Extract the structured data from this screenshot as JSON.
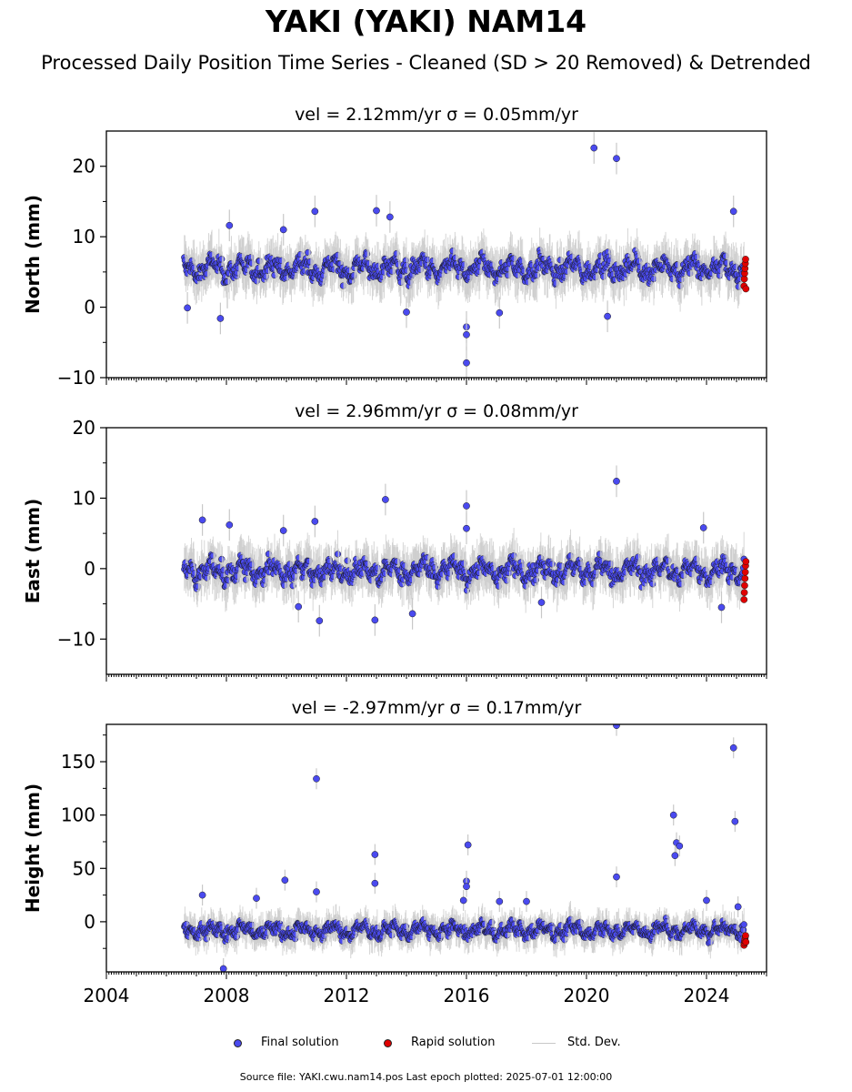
{
  "title": "YAKI (YAKI) NAM14",
  "subtitle": "Processed Daily Position Time Series - Cleaned (SD > 20 Removed) & Detrended",
  "colors": {
    "final": "#4a4aef",
    "rapid": "#e00000",
    "stddev": "#c8c8c8",
    "edge": "#1a1a1a"
  },
  "legend": {
    "final": "Final solution",
    "rapid": "Rapid solution",
    "stddev": "Std. Dev."
  },
  "footer": "Source file: YAKI.cwu.nam14.pos  Last epoch plotted: 2025-07-01 12:00:00",
  "chart_data": [
    {
      "type": "scatter",
      "title": "vel = 2.12mm/yr   σ = 0.05mm/yr",
      "ylabel": "North (mm)",
      "xlim": [
        2004.0,
        2026.0
      ],
      "ylim": [
        -10,
        25
      ],
      "yticks": [
        -10,
        0,
        10,
        20
      ],
      "ytick_labels": [
        "−10",
        "0",
        "10",
        "20"
      ],
      "series_start": 2006.6,
      "rapid_start": 2025.25,
      "rapid_end": 2025.5,
      "baseline": 5.5,
      "noise": 1.6,
      "rapid_values": [
        3.0,
        4.0,
        4.8,
        5.5,
        6.2,
        6.8,
        2.6
      ],
      "outliers": [
        {
          "x": 2020.25,
          "y": 22.6
        },
        {
          "x": 2021.0,
          "y": 21.1
        },
        {
          "x": 2013.0,
          "y": 13.7
        },
        {
          "x": 2010.95,
          "y": 13.6
        },
        {
          "x": 2024.9,
          "y": 13.6
        },
        {
          "x": 2013.45,
          "y": 12.8
        },
        {
          "x": 2016.0,
          "y": -2.8
        },
        {
          "x": 2016.0,
          "y": -3.9
        },
        {
          "x": 2016.0,
          "y": -7.9
        },
        {
          "x": 2007.8,
          "y": -1.6
        },
        {
          "x": 2014.0,
          "y": -0.7
        },
        {
          "x": 2020.7,
          "y": -1.3
        },
        {
          "x": 2017.1,
          "y": -0.8
        },
        {
          "x": 2006.7,
          "y": -0.1
        },
        {
          "x": 2009.9,
          "y": 11.0
        },
        {
          "x": 2008.1,
          "y": 11.6
        }
      ]
    },
    {
      "type": "scatter",
      "title": "vel = 2.96mm/yr   σ = 0.08mm/yr",
      "ylabel": "East (mm)",
      "xlim": [
        2004.0,
        2026.0
      ],
      "ylim": [
        -15,
        20
      ],
      "yticks": [
        -10,
        0,
        10,
        20
      ],
      "ytick_labels": [
        "−10",
        "0",
        "10",
        "20"
      ],
      "series_start": 2006.6,
      "rapid_start": 2025.25,
      "rapid_end": 2025.5,
      "baseline": -0.3,
      "noise": 1.6,
      "rapid_values": [
        -4.4,
        -3.4,
        -2.4,
        -1.4,
        -0.5,
        0.4,
        1.0
      ],
      "outliers": [
        {
          "x": 2021.0,
          "y": 12.4
        },
        {
          "x": 2013.3,
          "y": 9.8
        },
        {
          "x": 2016.0,
          "y": 8.9
        },
        {
          "x": 2007.2,
          "y": 6.9
        },
        {
          "x": 2010.95,
          "y": 6.7
        },
        {
          "x": 2008.1,
          "y": 6.2
        },
        {
          "x": 2023.9,
          "y": 5.8
        },
        {
          "x": 2016.0,
          "y": 5.7
        },
        {
          "x": 2009.9,
          "y": 5.4
        },
        {
          "x": 2011.1,
          "y": -7.4
        },
        {
          "x": 2012.95,
          "y": -7.3
        },
        {
          "x": 2014.2,
          "y": -6.4
        },
        {
          "x": 2010.4,
          "y": -5.4
        },
        {
          "x": 2024.5,
          "y": -5.5
        },
        {
          "x": 2018.5,
          "y": -4.8
        }
      ]
    },
    {
      "type": "scatter",
      "title": "vel = -2.97mm/yr   σ = 0.17mm/yr",
      "ylabel": "Height (mm)",
      "xlim": [
        2004.0,
        2026.0
      ],
      "ylim": [
        -47,
        185
      ],
      "yticks": [
        0,
        50,
        100,
        150
      ],
      "ytick_labels": [
        "0",
        "50",
        "100",
        "150"
      ],
      "xticks": [
        2004,
        2008,
        2012,
        2016,
        2020,
        2024
      ],
      "series_start": 2006.6,
      "rapid_start": 2025.25,
      "rapid_end": 2025.5,
      "baseline": -8,
      "noise": 7,
      "rapid_values": [
        -22,
        -20,
        -18,
        -16,
        -14,
        -13,
        -19
      ],
      "outliers": [
        {
          "x": 2021.0,
          "y": 184
        },
        {
          "x": 2024.9,
          "y": 163
        },
        {
          "x": 2011.0,
          "y": 134
        },
        {
          "x": 2022.9,
          "y": 100
        },
        {
          "x": 2024.95,
          "y": 94
        },
        {
          "x": 2023.0,
          "y": 74
        },
        {
          "x": 2023.1,
          "y": 71
        },
        {
          "x": 2016.05,
          "y": 72
        },
        {
          "x": 2012.95,
          "y": 63
        },
        {
          "x": 2022.95,
          "y": 62
        },
        {
          "x": 2021.0,
          "y": 42
        },
        {
          "x": 2009.95,
          "y": 39
        },
        {
          "x": 2016.0,
          "y": 38
        },
        {
          "x": 2012.95,
          "y": 36
        },
        {
          "x": 2016.0,
          "y": 33
        },
        {
          "x": 2011.0,
          "y": 28
        },
        {
          "x": 2007.2,
          "y": 25
        },
        {
          "x": 2009.0,
          "y": 22
        },
        {
          "x": 2015.9,
          "y": 20
        },
        {
          "x": 2017.1,
          "y": 19
        },
        {
          "x": 2018.0,
          "y": 19
        },
        {
          "x": 2024.0,
          "y": 20
        },
        {
          "x": 2025.05,
          "y": 14
        },
        {
          "x": 2007.9,
          "y": -44
        }
      ]
    }
  ]
}
